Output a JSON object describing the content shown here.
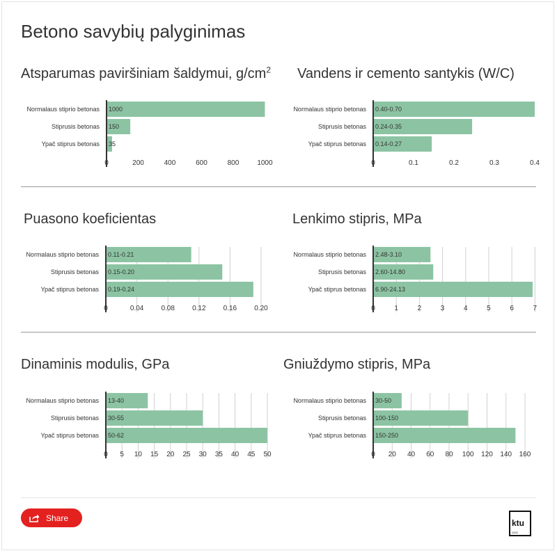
{
  "page": {
    "title": "Betono savybių palyginimas"
  },
  "share_button": {
    "label": "Share",
    "color": "#e3211f",
    "icon": "share-icon"
  },
  "logo": {
    "text": "ktu",
    "subtext": "1922"
  },
  "colors": {
    "bar": "#8cc4a3",
    "axis": "#333333",
    "grid": "#d0d0d0",
    "divider": "#999999"
  },
  "chart_data": [
    {
      "type": "bar",
      "orientation": "horizontal",
      "title": "Atsparumas paviršiniam šaldymui, g/cm",
      "title_sup": "2",
      "categories": [
        "Normalaus stiprio betonas",
        "Stiprusis betonas",
        "Ypač stiprus betonas"
      ],
      "values": [
        1000,
        150,
        35
      ],
      "value_labels": [
        "1000",
        "150",
        "35"
      ],
      "xlim": [
        0,
        1020
      ],
      "ticks": [
        0,
        200,
        400,
        600,
        800,
        1000
      ],
      "tick_labels": [
        "0",
        "200",
        "400",
        "600",
        "800",
        "1000"
      ],
      "grid": false
    },
    {
      "type": "bar",
      "orientation": "horizontal",
      "title": "Vandens ir cemento santykis (W/C)",
      "title_sup": "",
      "categories": [
        "Normalaus stiprio betonas",
        "Stiprusis betonas",
        "Ypač stiprus betonas"
      ],
      "values": [
        0.4,
        0.245,
        0.145
      ],
      "value_labels": [
        "0.40-0.70",
        "0.24-0.35",
        "0.14-0.27"
      ],
      "xlim": [
        0,
        0.4
      ],
      "ticks": [
        0,
        0.1,
        0.2,
        0.3,
        0.4
      ],
      "tick_labels": [
        "0",
        "0.1",
        "0.2",
        "0.3",
        "0.4"
      ],
      "grid": false
    },
    {
      "type": "bar",
      "orientation": "horizontal",
      "title": "Puasono koeficientas",
      "title_sup": "",
      "categories": [
        "Normalaus stiprio betonas",
        "Stiprusis betonas",
        "Ypač stiprus betonas"
      ],
      "values": [
        0.11,
        0.15,
        0.19
      ],
      "value_labels": [
        "0.11-0.21",
        "0.15-0.20",
        "0.19-0.24"
      ],
      "xlim": [
        0,
        0.2
      ],
      "ticks": [
        0,
        0.04,
        0.08,
        0.12,
        0.16,
        0.2
      ],
      "tick_labels": [
        "0",
        "0.04",
        "0.08",
        "0.12",
        "0.16",
        "0.20"
      ],
      "grid": true
    },
    {
      "type": "bar",
      "orientation": "horizontal",
      "title": "Lenkimo stipris, MPa",
      "title_sup": "",
      "categories": [
        "Normalaus stiprio betonas",
        "Stiprusis betonas",
        "Ypač stiprus betonas"
      ],
      "values": [
        2.48,
        2.6,
        6.9
      ],
      "value_labels": [
        "2.48-3.10",
        "2.60-14.80",
        "6.90-24.13"
      ],
      "xlim": [
        0,
        6.9
      ],
      "ticks": [
        0,
        1,
        2,
        3,
        4,
        5,
        6,
        7
      ],
      "tick_labels": [
        "0",
        "1",
        "2",
        "3",
        "4",
        "5",
        "6",
        "7"
      ],
      "grid": true
    },
    {
      "type": "bar",
      "orientation": "horizontal",
      "title": "Dinaminis modulis, GPa",
      "title_sup": "",
      "categories": [
        "Normalaus stiprio betonas",
        "Stiprusis betonas",
        "Ypač stiprus betonas"
      ],
      "values": [
        13,
        30,
        50
      ],
      "value_labels": [
        "13-40",
        "30-55",
        "50-62"
      ],
      "xlim": [
        0,
        50
      ],
      "ticks": [
        0,
        5,
        10,
        15,
        20,
        25,
        30,
        35,
        40,
        45,
        50
      ],
      "tick_labels": [
        "0",
        "5",
        "10",
        "15",
        "20",
        "25",
        "30",
        "35",
        "40",
        "45",
        "50"
      ],
      "grid": true
    },
    {
      "type": "bar",
      "orientation": "horizontal",
      "title": "Gniuždymo stipris, MPa",
      "title_sup": "",
      "categories": [
        "Normalaus stiprio betonas",
        "Stiprusis betonas",
        "Ypač stiprus betonas"
      ],
      "values": [
        30,
        100,
        150
      ],
      "value_labels": [
        "30-50",
        "100-150",
        "150-250"
      ],
      "xlim": [
        0,
        160
      ],
      "ticks": [
        0,
        20,
        40,
        60,
        80,
        100,
        120,
        140,
        160
      ],
      "tick_labels": [
        "0",
        "20",
        "40",
        "60",
        "80",
        "100",
        "120",
        "140",
        "160"
      ],
      "grid": true
    }
  ]
}
